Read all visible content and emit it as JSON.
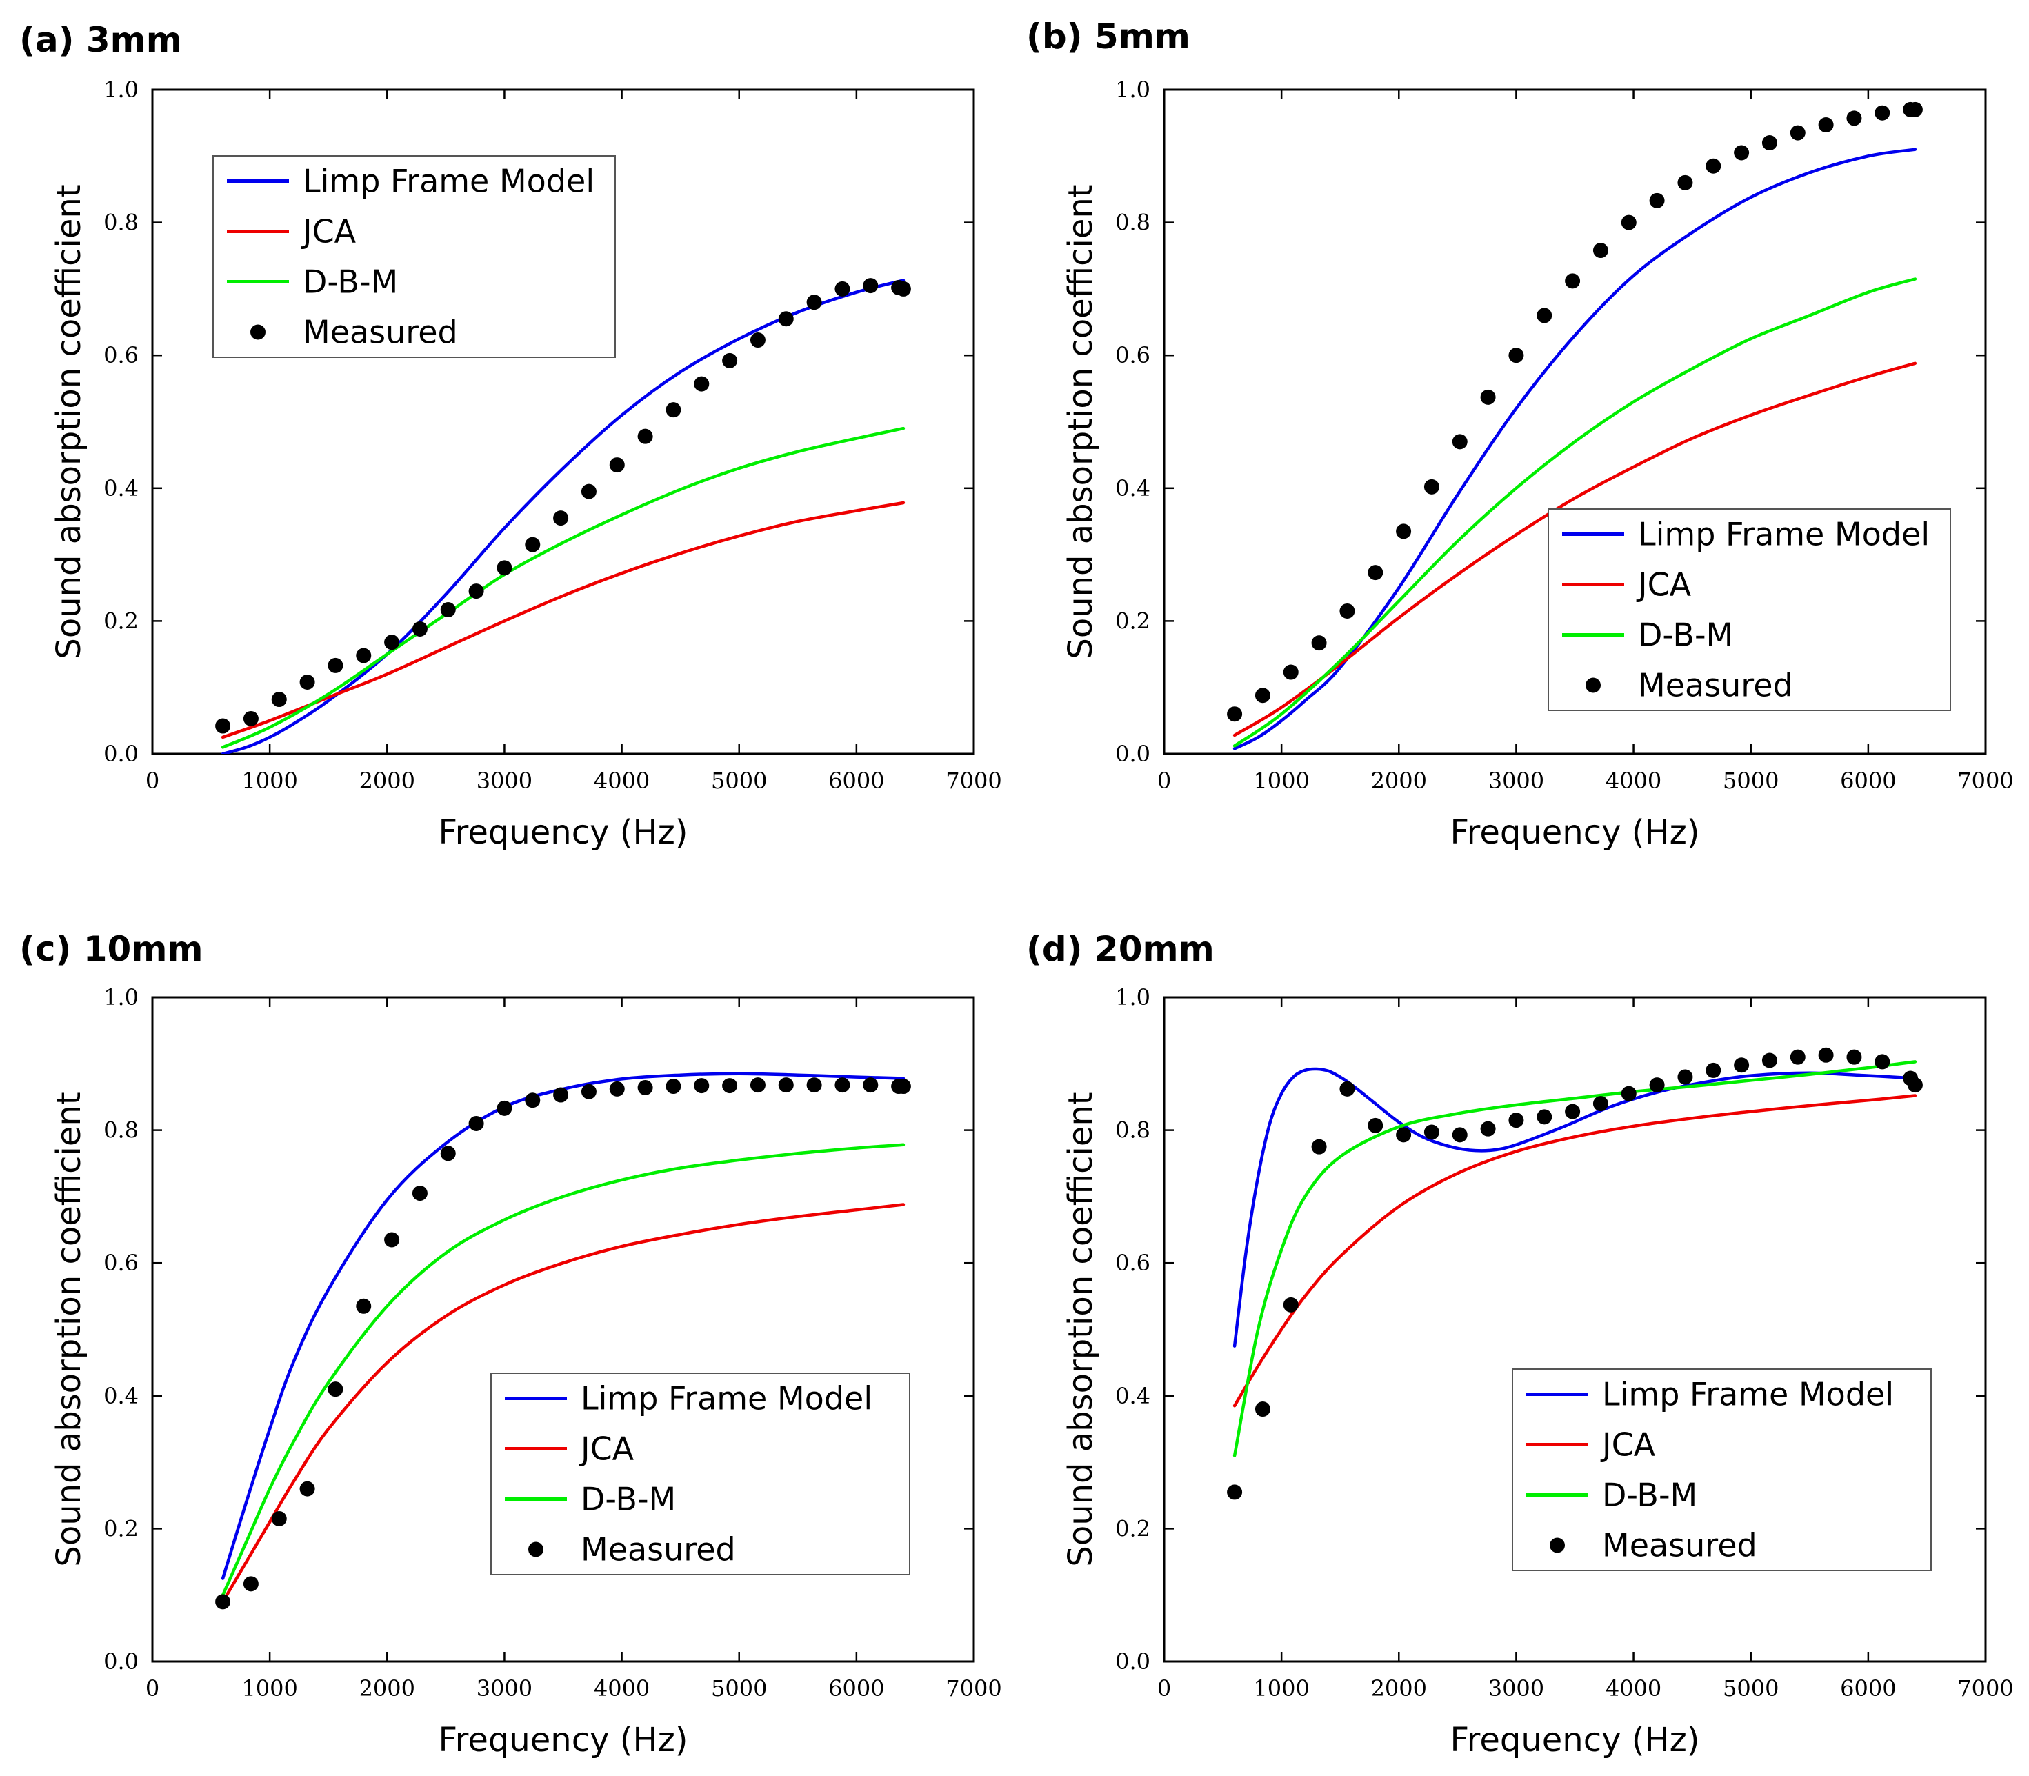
{
  "figure": {
    "layout": "2x2 grid"
  },
  "chart_data": [
    {
      "type": "line",
      "panel_label": "(a) 3mm",
      "xlabel": "Frequency (Hz)",
      "ylabel": "Sound absorption coefficient",
      "xlim": [
        0,
        7000
      ],
      "ylim": [
        0,
        1.0
      ],
      "xticks": [
        0,
        1000,
        2000,
        3000,
        4000,
        5000,
        6000,
        7000
      ],
      "xtick_labels": [
        "0",
        "1000",
        "2000",
        "3000",
        "4000",
        "5000",
        "6000",
        "7000"
      ],
      "yticks": [
        0,
        0.2,
        0.4,
        0.6,
        0.8,
        1.0
      ],
      "ytick_labels": [
        "0.0",
        "0.2",
        "0.4",
        "0.6",
        "0.8",
        "1.0"
      ],
      "legend_position": "top-left",
      "series": [
        {
          "name": "Limp Frame Model",
          "kind": "line",
          "color": "#0000ee",
          "x": [
            600,
            800,
            1000,
            1200,
            1500,
            2000,
            2500,
            3000,
            3500,
            4000,
            4500,
            5000,
            5500,
            6000,
            6400
          ],
          "y": [
            0.0,
            0.01,
            0.025,
            0.045,
            0.08,
            0.15,
            0.24,
            0.34,
            0.43,
            0.51,
            0.575,
            0.625,
            0.665,
            0.695,
            0.713
          ]
        },
        {
          "name": "JCA",
          "kind": "line",
          "color": "#ee0000",
          "x": [
            600,
            1000,
            1500,
            2000,
            2500,
            3000,
            3500,
            4000,
            4500,
            5000,
            5500,
            6000,
            6400
          ],
          "y": [
            0.025,
            0.05,
            0.085,
            0.12,
            0.16,
            0.2,
            0.238,
            0.272,
            0.302,
            0.328,
            0.35,
            0.366,
            0.378
          ]
        },
        {
          "name": "D-B-M",
          "kind": "line",
          "color": "#00ee00",
          "x": [
            600,
            1000,
            1500,
            2000,
            2500,
            3000,
            3500,
            4000,
            4500,
            5000,
            5500,
            6000,
            6400
          ],
          "y": [
            0.01,
            0.04,
            0.09,
            0.15,
            0.21,
            0.27,
            0.318,
            0.36,
            0.398,
            0.43,
            0.455,
            0.475,
            0.49
          ]
        },
        {
          "name": "Measured",
          "kind": "scatter",
          "color": "#000000",
          "x": [
            600,
            840,
            1080,
            1320,
            1560,
            1800,
            2040,
            2280,
            2520,
            2760,
            3000,
            3240,
            3480,
            3720,
            3960,
            4200,
            4440,
            4680,
            4920,
            5160,
            5400,
            5640,
            5880,
            6120,
            6360,
            6400
          ],
          "y": [
            0.042,
            0.053,
            0.082,
            0.108,
            0.133,
            0.148,
            0.168,
            0.188,
            0.217,
            0.245,
            0.28,
            0.315,
            0.355,
            0.395,
            0.435,
            0.478,
            0.518,
            0.557,
            0.592,
            0.623,
            0.655,
            0.68,
            0.7,
            0.705,
            0.702,
            0.7
          ]
        }
      ]
    },
    {
      "type": "line",
      "panel_label": "(b) 5mm",
      "xlabel": "Frequency (Hz)",
      "ylabel": "Sound absorption coefficient",
      "xlim": [
        0,
        7000
      ],
      "ylim": [
        0,
        1.0
      ],
      "xticks": [
        0,
        1000,
        2000,
        3000,
        4000,
        5000,
        6000,
        7000
      ],
      "xtick_labels": [
        "0",
        "1000",
        "2000",
        "3000",
        "4000",
        "5000",
        "6000",
        "7000"
      ],
      "yticks": [
        0,
        0.2,
        0.4,
        0.6,
        0.8,
        1.0
      ],
      "ytick_labels": [
        "0.0",
        "0.2",
        "0.4",
        "0.6",
        "0.8",
        "1.0"
      ],
      "legend_position": "bottom-right",
      "series": [
        {
          "name": "Limp Frame Model",
          "kind": "line",
          "color": "#0000ee",
          "x": [
            600,
            800,
            1000,
            1200,
            1500,
            2000,
            2500,
            3000,
            3500,
            4000,
            4500,
            5000,
            5500,
            6000,
            6400
          ],
          "y": [
            0.008,
            0.025,
            0.05,
            0.08,
            0.13,
            0.25,
            0.39,
            0.52,
            0.63,
            0.72,
            0.785,
            0.838,
            0.875,
            0.9,
            0.91
          ]
        },
        {
          "name": "JCA",
          "kind": "line",
          "color": "#ee0000",
          "x": [
            600,
            1000,
            1500,
            2000,
            2500,
            3000,
            3500,
            4000,
            4500,
            5000,
            5500,
            6000,
            6400
          ],
          "y": [
            0.028,
            0.07,
            0.135,
            0.205,
            0.27,
            0.33,
            0.385,
            0.432,
            0.475,
            0.51,
            0.54,
            0.568,
            0.588
          ]
        },
        {
          "name": "D-B-M",
          "kind": "line",
          "color": "#00ee00",
          "x": [
            600,
            1000,
            1500,
            2000,
            2500,
            3000,
            3500,
            4000,
            4500,
            5000,
            5500,
            6000,
            6400
          ],
          "y": [
            0.012,
            0.06,
            0.14,
            0.23,
            0.32,
            0.4,
            0.47,
            0.53,
            0.58,
            0.625,
            0.66,
            0.695,
            0.715
          ]
        },
        {
          "name": "Measured",
          "kind": "scatter",
          "color": "#000000",
          "x": [
            600,
            840,
            1080,
            1320,
            1560,
            1800,
            2040,
            2280,
            2520,
            2760,
            3000,
            3240,
            3480,
            3720,
            3960,
            4200,
            4440,
            4680,
            4920,
            5160,
            5400,
            5640,
            5880,
            6120,
            6360,
            6400
          ],
          "y": [
            0.06,
            0.088,
            0.123,
            0.167,
            0.215,
            0.273,
            0.335,
            0.402,
            0.47,
            0.537,
            0.6,
            0.66,
            0.712,
            0.758,
            0.8,
            0.833,
            0.86,
            0.885,
            0.905,
            0.92,
            0.935,
            0.947,
            0.957,
            0.965,
            0.97,
            0.97
          ]
        }
      ]
    },
    {
      "type": "line",
      "panel_label": "(c) 10mm",
      "xlabel": "Frequency (Hz)",
      "ylabel": "Sound absorption coefficient",
      "xlim": [
        0,
        7000
      ],
      "ylim": [
        0,
        1.0
      ],
      "xticks": [
        0,
        1000,
        2000,
        3000,
        4000,
        5000,
        6000,
        7000
      ],
      "xtick_labels": [
        "0",
        "1000",
        "2000",
        "3000",
        "4000",
        "5000",
        "6000",
        "7000"
      ],
      "yticks": [
        0,
        0.2,
        0.4,
        0.6,
        0.8,
        1.0
      ],
      "ytick_labels": [
        "0.0",
        "0.2",
        "0.4",
        "0.6",
        "0.8",
        "1.0"
      ],
      "legend_position": "bottom-right",
      "series": [
        {
          "name": "Limp Frame Model",
          "kind": "line",
          "color": "#0000ee",
          "x": [
            600,
            800,
            1000,
            1200,
            1500,
            2000,
            2500,
            3000,
            3500,
            4000,
            4500,
            5000,
            5500,
            6000,
            6400
          ],
          "y": [
            0.125,
            0.24,
            0.35,
            0.45,
            0.56,
            0.695,
            0.78,
            0.835,
            0.862,
            0.877,
            0.883,
            0.885,
            0.883,
            0.88,
            0.878
          ]
        },
        {
          "name": "JCA",
          "kind": "line",
          "color": "#ee0000",
          "x": [
            600,
            800,
            1000,
            1200,
            1500,
            2000,
            2500,
            3000,
            3500,
            4000,
            4500,
            5000,
            5500,
            6000,
            6400
          ],
          "y": [
            0.09,
            0.15,
            0.21,
            0.27,
            0.35,
            0.45,
            0.52,
            0.567,
            0.6,
            0.625,
            0.643,
            0.658,
            0.67,
            0.68,
            0.688
          ]
        },
        {
          "name": "D-B-M",
          "kind": "line",
          "color": "#00ee00",
          "x": [
            600,
            800,
            1000,
            1200,
            1500,
            2000,
            2500,
            3000,
            3500,
            4000,
            4500,
            5000,
            5500,
            6000,
            6400
          ],
          "y": [
            0.1,
            0.18,
            0.26,
            0.33,
            0.42,
            0.535,
            0.615,
            0.665,
            0.7,
            0.725,
            0.743,
            0.755,
            0.765,
            0.773,
            0.778
          ]
        },
        {
          "name": "Measured",
          "kind": "scatter",
          "color": "#000000",
          "x": [
            600,
            840,
            1080,
            1320,
            1560,
            1800,
            2040,
            2280,
            2520,
            2760,
            3000,
            3240,
            3480,
            3720,
            3960,
            4200,
            4440,
            4680,
            4920,
            5160,
            5400,
            5640,
            5880,
            6120,
            6360,
            6400
          ],
          "y": [
            0.09,
            0.117,
            0.215,
            0.26,
            0.41,
            0.535,
            0.635,
            0.705,
            0.765,
            0.81,
            0.833,
            0.845,
            0.853,
            0.858,
            0.862,
            0.864,
            0.866,
            0.867,
            0.867,
            0.868,
            0.868,
            0.868,
            0.868,
            0.868,
            0.866,
            0.866
          ]
        }
      ]
    },
    {
      "type": "line",
      "panel_label": "(d) 20mm",
      "xlabel": "Frequency (Hz)",
      "ylabel": "Sound absorption coefficient",
      "xlim": [
        0,
        7000
      ],
      "ylim": [
        0,
        1.0
      ],
      "xticks": [
        0,
        1000,
        2000,
        3000,
        4000,
        5000,
        6000,
        7000
      ],
      "xtick_labels": [
        "0",
        "1000",
        "2000",
        "3000",
        "4000",
        "5000",
        "6000",
        "7000"
      ],
      "yticks": [
        0,
        0.2,
        0.4,
        0.6,
        0.8,
        1.0
      ],
      "ytick_labels": [
        "0.0",
        "0.2",
        "0.4",
        "0.6",
        "0.8",
        "1.0"
      ],
      "legend_position": "bottom-right",
      "series": [
        {
          "name": "Limp Frame Model",
          "kind": "line",
          "color": "#0000ee",
          "x": [
            600,
            700,
            800,
            900,
            1000,
            1100,
            1200,
            1300,
            1400,
            1500,
            1600,
            1800,
            2000,
            2200,
            2400,
            2600,
            2800,
            3000,
            3400,
            3800,
            4200,
            4600,
            5000,
            5500,
            6000,
            6400
          ],
          "y": [
            0.475,
            0.62,
            0.73,
            0.81,
            0.855,
            0.88,
            0.89,
            0.892,
            0.889,
            0.88,
            0.868,
            0.84,
            0.812,
            0.79,
            0.777,
            0.77,
            0.77,
            0.778,
            0.805,
            0.835,
            0.857,
            0.872,
            0.882,
            0.886,
            0.882,
            0.878
          ]
        },
        {
          "name": "JCA",
          "kind": "line",
          "color": "#ee0000",
          "x": [
            600,
            800,
            1000,
            1200,
            1500,
            2000,
            2500,
            3000,
            3500,
            4000,
            4500,
            5000,
            5500,
            6000,
            6400
          ],
          "y": [
            0.385,
            0.445,
            0.5,
            0.55,
            0.61,
            0.685,
            0.735,
            0.768,
            0.79,
            0.806,
            0.818,
            0.828,
            0.837,
            0.845,
            0.852
          ]
        },
        {
          "name": "D-B-M",
          "kind": "line",
          "color": "#00ee00",
          "x": [
            600,
            800,
            1000,
            1200,
            1500,
            2000,
            2500,
            3000,
            3500,
            4000,
            4500,
            5000,
            5500,
            6000,
            6400
          ],
          "y": [
            0.31,
            0.5,
            0.62,
            0.7,
            0.76,
            0.805,
            0.825,
            0.838,
            0.848,
            0.858,
            0.866,
            0.875,
            0.884,
            0.894,
            0.903
          ]
        },
        {
          "name": "Measured",
          "kind": "scatter",
          "color": "#000000",
          "x": [
            600,
            840,
            1080,
            1320,
            1560,
            1800,
            2040,
            2280,
            2520,
            2760,
            3000,
            3240,
            3480,
            3720,
            3960,
            4200,
            4440,
            4680,
            4920,
            5160,
            5400,
            5640,
            5880,
            6120,
            6360,
            6400
          ],
          "y": [
            0.255,
            0.38,
            0.537,
            0.775,
            0.862,
            0.807,
            0.793,
            0.797,
            0.793,
            0.802,
            0.815,
            0.82,
            0.828,
            0.84,
            0.855,
            0.868,
            0.88,
            0.89,
            0.898,
            0.905,
            0.91,
            0.913,
            0.91,
            0.903,
            0.878,
            0.868
          ]
        }
      ]
    }
  ]
}
